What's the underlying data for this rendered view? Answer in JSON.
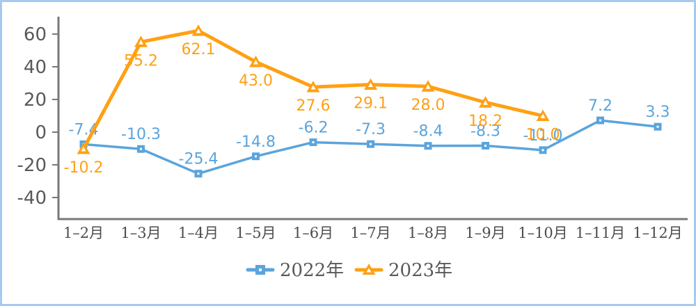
{
  "frame": {
    "border_color": "#A6CAEF",
    "background_color": "#FFFFFF"
  },
  "chart_data": {
    "type": "line",
    "title": "",
    "xlabel": "",
    "ylabel": "",
    "categories": [
      "1–2月",
      "1–3月",
      "1–4月",
      "1–5月",
      "1–6月",
      "1–7月",
      "1–8月",
      "1–9月",
      "1–10月",
      "1–11月",
      "1–12月"
    ],
    "series": [
      {
        "name": "2022年",
        "color": "#5BA4DC",
        "marker": "square",
        "label_position": "above",
        "values": [
          -7.4,
          -10.3,
          -25.4,
          -14.8,
          -6.2,
          -7.3,
          -8.4,
          -8.3,
          -11.0,
          7.2,
          3.3
        ]
      },
      {
        "name": "2023年",
        "color": "#FFA013",
        "marker": "triangle",
        "label_position": "below",
        "values": [
          -10.2,
          55.2,
          62.1,
          43.0,
          27.6,
          29.1,
          28.0,
          18.2,
          10.0,
          null,
          null
        ]
      }
    ],
    "yticks": [
      60,
      40,
      20,
      0,
      -20,
      -40
    ],
    "ylim": [
      -53,
      72
    ],
    "grid": false,
    "legend_position": "bottom",
    "colors": {
      "axis_line": "#787878",
      "ytick_text": "#595959",
      "xtick_text": "#4D4D4D",
      "legend_text": "#595959"
    }
  }
}
